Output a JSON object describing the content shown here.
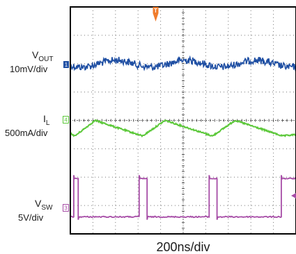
{
  "chart_data": {
    "type": "line",
    "title": "",
    "xlabel": "200ns/div",
    "ylabel": "",
    "grid": true,
    "x_divisions": 10,
    "y_divisions": 8,
    "trigger_marker": "T",
    "channels": [
      {
        "id": "1",
        "name": "V_OUT",
        "label_main": "V",
        "label_sub": "OUT",
        "scale": "10mV/div",
        "color": "#1f4fa3",
        "coupling": "AC ripple",
        "baseline_div": 2.0,
        "ripple_div": 0.25
      },
      {
        "id": "4",
        "name": "I_L",
        "label_main": "I",
        "label_sub": "L",
        "scale": "500mA/div",
        "color": "#5cc83a",
        "peak_times_div": [
          1.1,
          4.2,
          7.3
        ],
        "valley_times_div": [
          0.2,
          3.2,
          6.3,
          9.4
        ],
        "peak_level_div": 4.0,
        "valley_level_div": 4.55
      },
      {
        "id": "3",
        "name": "V_SW",
        "label_main": "V",
        "label_sub": "SW",
        "scale": "5V/div",
        "color": "#a64ca6",
        "low_level_div": 7.4,
        "high_level_div": 6.05,
        "high_intervals_div": [
          [
            0.15,
            0.35
          ],
          [
            3.05,
            3.4
          ],
          [
            6.15,
            6.5
          ],
          [
            9.35,
            10.0
          ]
        ]
      }
    ]
  }
}
